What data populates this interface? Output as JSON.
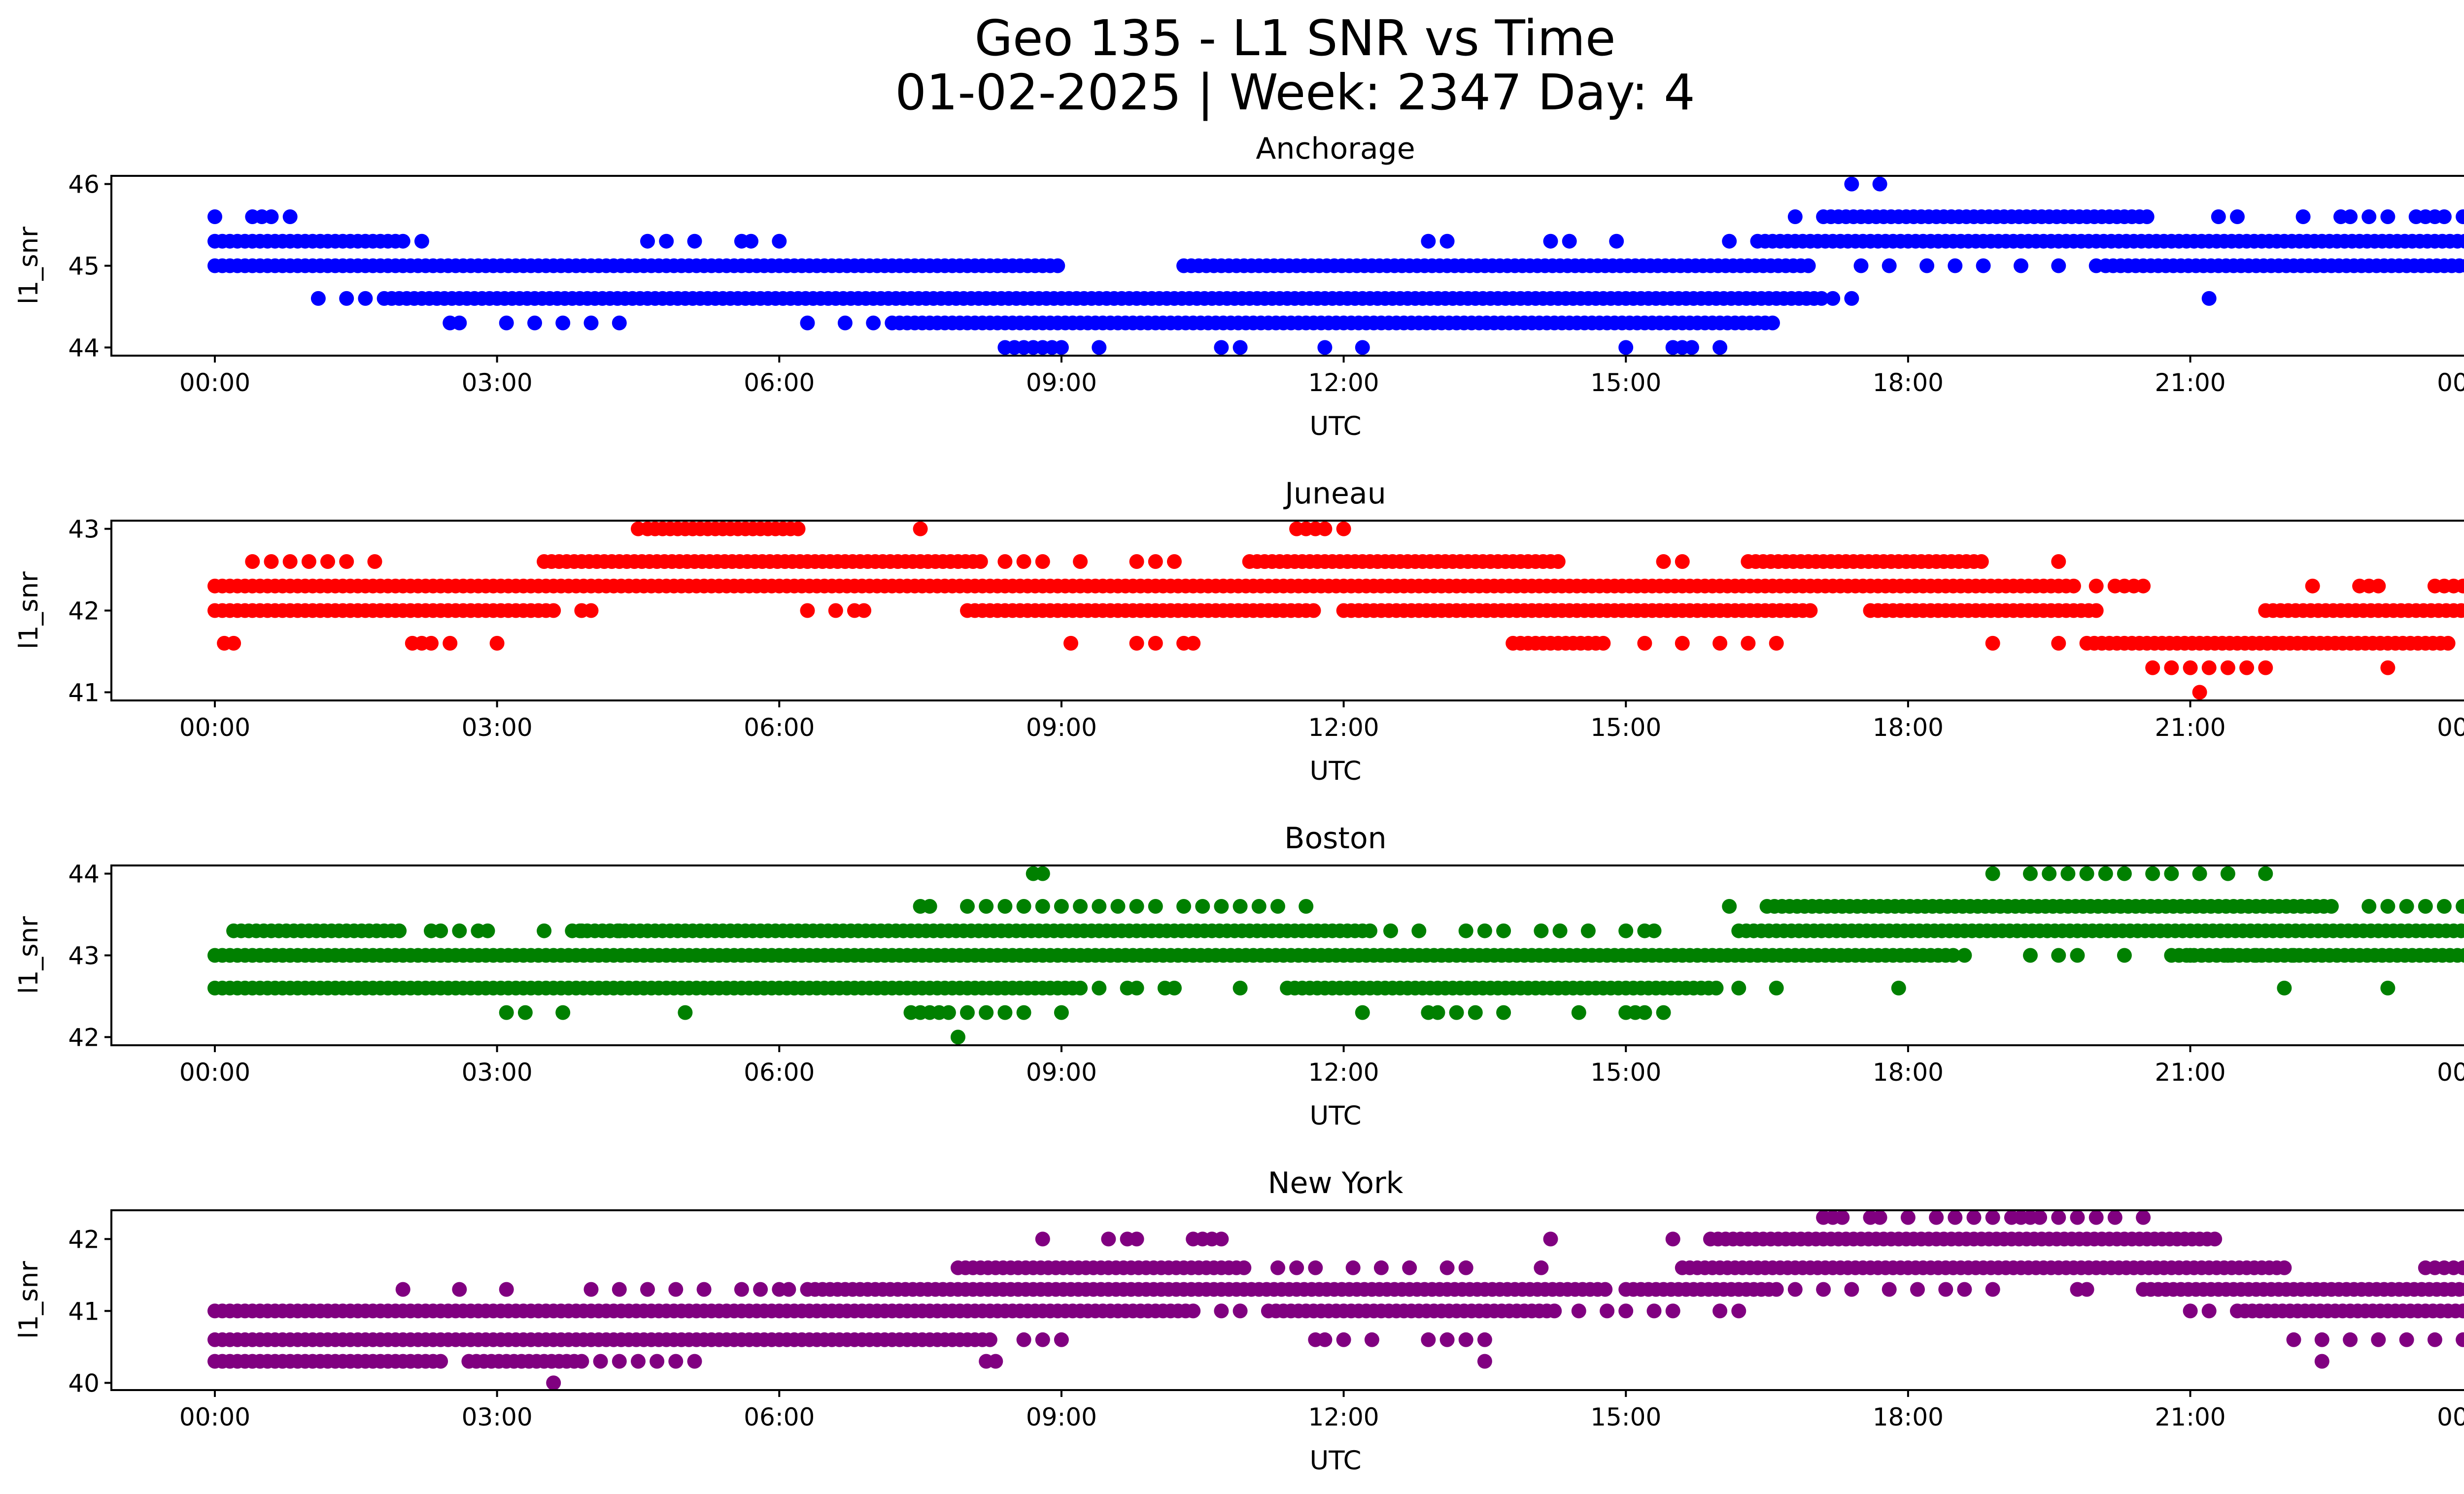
{
  "figure": {
    "title_line1": "Geo 135 - L1 SNR vs Time",
    "title_line2": "01-02-2025 | Week: 2347 Day: 4"
  },
  "chart_data": [
    {
      "type": "scatter",
      "title": "Anchorage",
      "color": "#0000ff",
      "xlabel": "UTC",
      "ylabel": "l1_snr",
      "xlim": [
        -1.1,
        24.9
      ],
      "ylim": [
        43.9,
        46.1
      ],
      "yticks": [
        44,
        45,
        46
      ],
      "xticks": [
        "00:00",
        "03:00",
        "06:00",
        "09:00",
        "12:00",
        "15:00",
        "18:00",
        "21:00",
        "00:00"
      ],
      "bands": [
        {
          "y": 44.3,
          "segments": [
            [
              7.2,
              16.6
            ]
          ],
          "points": [
            2.5,
            2.6,
            3.1,
            3.4,
            3.7,
            4.0,
            4.3,
            6.3,
            6.7,
            7.0
          ]
        },
        {
          "y": 44.6,
          "segments": [
            [
              1.8,
              17.1
            ]
          ],
          "points": [
            1.1,
            1.4,
            1.6,
            17.2,
            17.4
          ]
        },
        {
          "y": 45.0,
          "segments": [
            [
              0.0,
              9.0
            ],
            [
              10.3,
              17.0
            ],
            [
              20.1,
              24.0
            ]
          ],
          "points": [
            17.5,
            17.8,
            18.2,
            18.5,
            18.8,
            19.2,
            19.6,
            20.0
          ]
        },
        {
          "y": 45.3,
          "segments": [
            [
              0.0,
              2.0
            ],
            [
              16.4,
              24.0
            ]
          ],
          "points": [
            2.2,
            4.6,
            4.8,
            5.1,
            5.6,
            5.7,
            6.0,
            12.9,
            13.1,
            14.2,
            14.4,
            14.9,
            16.1
          ]
        },
        {
          "y": 45.6,
          "segments": [
            [
              17.1,
              20.6
            ]
          ],
          "points": [
            0.0,
            0.4,
            0.5,
            0.6,
            0.8,
            16.8,
            21.3,
            21.5,
            22.2,
            22.6,
            22.7,
            22.9,
            23.1,
            23.4,
            23.5,
            23.6,
            23.7,
            23.9
          ]
        },
        {
          "y": 46.0,
          "points": [
            17.4,
            17.7
          ]
        },
        {
          "y": 44.0,
          "points": [
            8.4,
            8.5,
            8.6,
            8.7,
            8.8,
            8.9,
            9.0,
            9.4,
            10.7,
            10.9,
            11.8,
            12.2,
            15.0,
            15.5,
            15.6,
            15.7,
            16.0
          ]
        },
        {
          "y": 44.6,
          "points": [
            21.2
          ]
        }
      ]
    },
    {
      "type": "scatter",
      "title": "Juneau",
      "color": "#ff0000",
      "xlabel": "UTC",
      "ylabel": "l1_snr",
      "xlim": [
        -1.1,
        24.9
      ],
      "ylim": [
        40.9,
        43.1
      ],
      "yticks": [
        41,
        42,
        43
      ],
      "xticks": [
        "00:00",
        "03:00",
        "06:00",
        "09:00",
        "12:00",
        "15:00",
        "18:00",
        "21:00",
        "00:00"
      ],
      "bands": [
        {
          "y": 41.0,
          "points": [
            21.1
          ]
        },
        {
          "y": 41.3,
          "points": [
            20.6,
            20.8,
            21.0,
            21.2,
            21.4,
            21.6,
            21.8,
            23.1
          ]
        },
        {
          "y": 41.6,
          "segments": [
            [
              13.8,
              14.8
            ],
            [
              19.9,
              23.8
            ]
          ],
          "points": [
            0.1,
            0.2,
            2.1,
            2.2,
            2.3,
            2.5,
            3.0,
            9.1,
            9.8,
            10.0,
            10.3,
            10.4,
            15.2,
            15.6,
            16.0,
            16.3,
            16.6,
            18.9,
            19.6
          ]
        },
        {
          "y": 42.0,
          "segments": [
            [
              0.0,
              3.6
            ],
            [
              8.0,
              11.7
            ],
            [
              12.0,
              17.0
            ],
            [
              17.6,
              20.0
            ],
            [
              21.8,
              24.0
            ]
          ],
          "points": [
            3.9,
            4.0,
            6.3,
            6.6,
            6.8,
            6.9
          ]
        },
        {
          "y": 42.3,
          "segments": [
            [
              0.0,
              19.8
            ]
          ],
          "points": [
            20.0,
            20.2,
            20.3,
            20.4,
            20.5,
            22.3,
            22.8,
            22.9,
            23.0,
            23.6,
            23.7,
            23.8,
            23.9
          ]
        },
        {
          "y": 42.6,
          "segments": [
            [
              3.5,
              8.2
            ],
            [
              11.0,
              14.3
            ],
            [
              16.3,
              18.8
            ]
          ],
          "points": [
            0.4,
            0.6,
            0.8,
            1.0,
            1.2,
            1.4,
            1.7,
            8.4,
            8.6,
            8.8,
            9.2,
            9.8,
            10.0,
            10.2,
            15.4,
            15.6,
            19.6
          ]
        },
        {
          "y": 43.0,
          "segments": [
            [
              4.6,
              6.2
            ]
          ],
          "points": [
            4.5,
            7.5,
            11.5,
            11.6,
            11.7,
            11.8,
            12.0
          ]
        }
      ]
    },
    {
      "type": "scatter",
      "title": "Boston",
      "color": "#008000",
      "xlabel": "UTC",
      "ylabel": "l1_snr",
      "xlim": [
        -1.1,
        24.9
      ],
      "ylim": [
        41.9,
        44.1
      ],
      "yticks": [
        42,
        43,
        44
      ],
      "xticks": [
        "00:00",
        "03:00",
        "06:00",
        "09:00",
        "12:00",
        "15:00",
        "18:00",
        "21:00",
        "00:00"
      ],
      "bands": [
        {
          "y": 42.0,
          "points": [
            7.9
          ]
        },
        {
          "y": 42.3,
          "points": [
            7.4,
            7.5,
            7.6,
            7.7,
            7.8,
            8.0,
            8.2,
            8.4,
            8.6,
            9.0,
            3.1,
            3.3,
            3.7,
            5.0,
            12.2,
            12.9,
            13.0,
            13.2,
            13.4,
            13.7,
            14.5,
            15.0,
            15.1,
            15.2,
            15.4
          ]
        },
        {
          "y": 42.6,
          "segments": [
            [
              0.0,
              9.2
            ],
            [
              11.4,
              16.0
            ]
          ],
          "points": [
            9.4,
            9.7,
            9.8,
            10.1,
            10.2,
            10.9,
            16.2,
            16.6,
            17.9,
            22.0,
            23.1
          ]
        },
        {
          "y": 43.0,
          "segments": [
            [
              0.0,
              18.5
            ],
            [
              20.8,
              24.0
            ]
          ],
          "points": [
            18.6,
            19.3,
            19.6,
            19.8,
            20.3,
            21.0,
            21.4,
            21.7,
            22.1
          ]
        },
        {
          "y": 43.3,
          "segments": [
            [
              0.2,
              2.0
            ],
            [
              3.8,
              12.3
            ],
            [
              16.2,
              24.0
            ]
          ],
          "points": [
            2.3,
            2.4,
            2.6,
            2.8,
            2.9,
            3.5,
            3.9,
            4.2,
            4.3,
            12.5,
            12.8,
            13.3,
            13.5,
            13.7,
            14.1,
            14.3,
            14.6,
            15.0,
            15.2,
            15.3
          ]
        },
        {
          "y": 43.6,
          "segments": [
            [
              16.5,
              22.5
            ]
          ],
          "points": [
            7.5,
            7.6,
            8.0,
            8.2,
            8.4,
            8.6,
            8.8,
            9.0,
            9.2,
            9.4,
            9.6,
            9.8,
            10.0,
            10.3,
            10.5,
            10.7,
            10.9,
            11.1,
            11.3,
            11.6,
            16.1,
            22.9,
            23.1,
            23.3,
            23.5,
            23.7,
            23.9
          ]
        },
        {
          "y": 44.0,
          "points": [
            8.7,
            8.8,
            18.9,
            19.3,
            19.5,
            19.7,
            19.9,
            20.1,
            20.3,
            20.6,
            20.8,
            21.1,
            21.4,
            21.8
          ]
        }
      ]
    },
    {
      "type": "scatter",
      "title": "New York",
      "color": "#800080",
      "xlabel": "UTC",
      "ylabel": "l1_snr",
      "xlim": [
        -1.1,
        24.9
      ],
      "ylim": [
        39.9,
        42.4
      ],
      "yticks": [
        40,
        41,
        42
      ],
      "xticks": [
        "00:00",
        "03:00",
        "06:00",
        "09:00",
        "12:00",
        "15:00",
        "18:00",
        "21:00",
        "00:00"
      ],
      "bands": [
        {
          "y": 40.0,
          "points": [
            3.6
          ]
        },
        {
          "y": 40.3,
          "segments": [
            [
              0.0,
              2.4
            ],
            [
              2.7,
              3.9
            ]
          ],
          "points": [
            4.1,
            4.3,
            4.5,
            4.7,
            4.9,
            5.1,
            8.2,
            8.3,
            13.5,
            22.4
          ]
        },
        {
          "y": 40.6,
          "segments": [
            [
              0.0,
              8.3
            ]
          ],
          "points": [
            8.6,
            8.8,
            9.0,
            11.7,
            11.8,
            12.0,
            12.3,
            12.9,
            13.1,
            13.3,
            13.5,
            22.1,
            22.4,
            22.7,
            23.0,
            23.3,
            23.6,
            23.9
          ]
        },
        {
          "y": 41.0,
          "segments": [
            [
              0.0,
              10.4
            ],
            [
              11.2,
              14.3
            ],
            [
              21.5,
              24.0
            ]
          ],
          "points": [
            10.7,
            10.9,
            14.5,
            14.8,
            15.0,
            15.3,
            15.5,
            16.0,
            16.2,
            21.0,
            21.2
          ]
        },
        {
          "y": 41.3,
          "segments": [
            [
              6.3,
              14.8
            ],
            [
              15.0,
              16.6
            ],
            [
              20.5,
              24.0
            ]
          ],
          "points": [
            2.0,
            2.6,
            3.1,
            4.0,
            4.3,
            4.6,
            4.9,
            5.2,
            5.6,
            5.8,
            6.0,
            6.1,
            16.8,
            17.1,
            17.4,
            17.8,
            18.1,
            18.4,
            18.6,
            18.9,
            19.8,
            19.9
          ]
        },
        {
          "y": 41.6,
          "segments": [
            [
              7.9,
              11.0
            ],
            [
              15.6,
              22.0
            ]
          ],
          "points": [
            11.3,
            11.5,
            11.7,
            12.1,
            12.4,
            12.7,
            13.1,
            13.3,
            14.1,
            23.5,
            23.6,
            23.7,
            23.8,
            23.9
          ]
        },
        {
          "y": 42.0,
          "segments": [
            [
              15.9,
              21.3
            ]
          ],
          "points": [
            8.8,
            9.5,
            9.7,
            9.8,
            10.4,
            10.5,
            10.6,
            10.7,
            14.2,
            15.5
          ]
        },
        {
          "y": 42.3,
          "points": [
            17.1,
            17.2,
            17.3,
            17.6,
            17.7,
            18.0,
            18.3,
            18.5,
            18.7,
            18.9,
            19.1,
            19.2,
            19.3,
            19.4,
            19.6,
            19.8,
            20.0,
            20.2,
            20.5
          ]
        }
      ]
    }
  ]
}
